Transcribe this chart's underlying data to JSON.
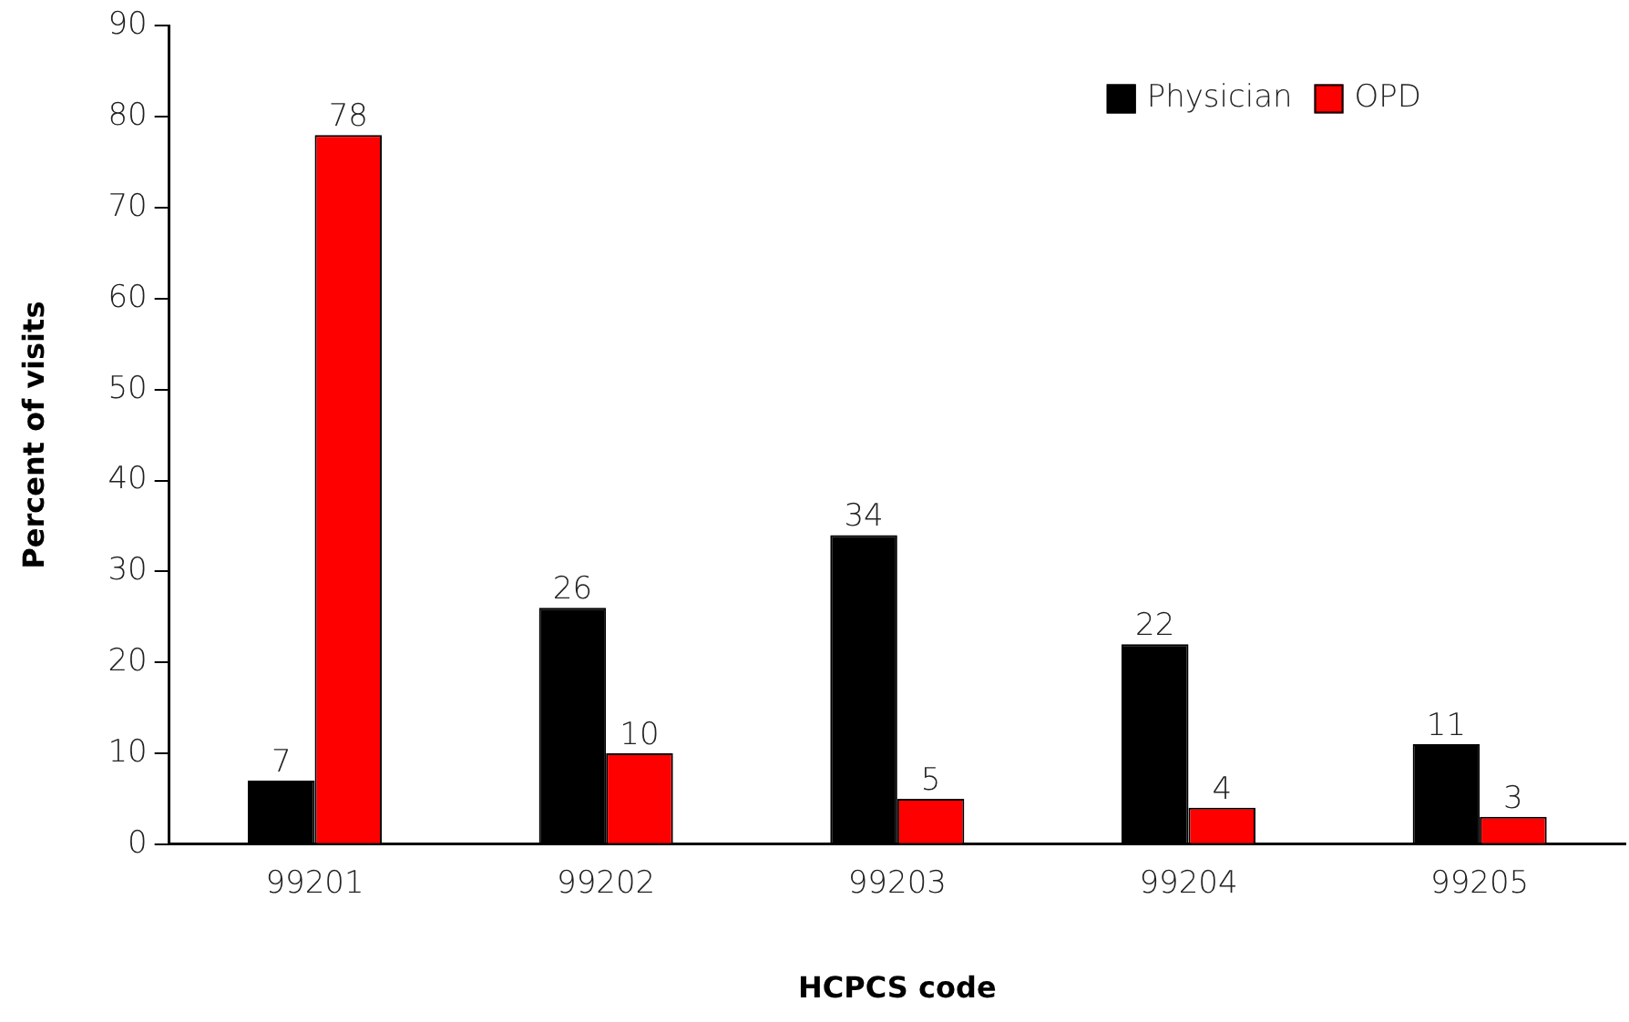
{
  "chart_data": {
    "type": "bar",
    "xlabel": "HCPCS code",
    "ylabel": "Percent of visits",
    "categories": [
      "99201",
      "99202",
      "99203",
      "99204",
      "99205"
    ],
    "series": [
      {
        "name": "Physician",
        "color": "#000000",
        "values": [
          7,
          26,
          34,
          22,
          11
        ]
      },
      {
        "name": "OPD",
        "color": "#ff0000",
        "values": [
          78,
          10,
          5,
          4,
          3
        ]
      }
    ],
    "ylim": [
      0,
      90
    ],
    "yticks": [
      0,
      10,
      20,
      30,
      40,
      50,
      60,
      70,
      80,
      90
    ],
    "grid": false,
    "legend": "top right",
    "data_labels": true
  }
}
